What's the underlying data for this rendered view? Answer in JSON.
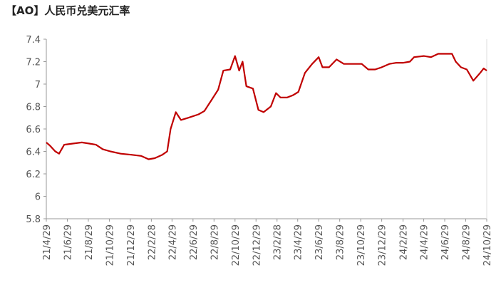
{
  "chart_data": {
    "type": "line",
    "title": "【AO】人民币兑美元汇率",
    "x": [
      "21/4/29",
      "21/5/10",
      "21/5/25",
      "21/6/5",
      "21/6/20",
      "21/7/15",
      "21/8/10",
      "21/9/1",
      "21/9/20",
      "21/10/10",
      "21/11/1",
      "21/12/1",
      "22/1/1",
      "22/1/29",
      "22/2/20",
      "22/3/10",
      "22/4/1",
      "22/4/15",
      "22/4/25",
      "22/5/10",
      "22/5/25",
      "22/6/15",
      "22/7/15",
      "22/8/1",
      "22/8/20",
      "22/9/10",
      "22/9/25",
      "22/10/15",
      "22/10/29",
      "22/11/10",
      "22/11/20",
      "22/12/1",
      "22/12/20",
      "23/1/5",
      "23/1/20",
      "23/2/10",
      "23/2/25",
      "23/3/10",
      "23/3/29",
      "23/4/15",
      "23/5/1",
      "23/5/20",
      "23/6/10",
      "23/6/29",
      "23/7/10",
      "23/7/29",
      "23/8/20",
      "23/9/10",
      "23/10/1",
      "23/11/1",
      "23/11/20",
      "23/12/10",
      "23/12/29",
      "24/1/20",
      "24/2/10",
      "24/3/1",
      "24/3/20",
      "24/4/1",
      "24/4/29",
      "24/5/20",
      "24/6/10",
      "24/6/29",
      "24/7/20",
      "24/7/31",
      "24/8/15",
      "24/9/1",
      "24/9/20",
      "24/10/10",
      "24/10/20",
      "24/10/29"
    ],
    "series": [
      {
        "color": "#c00000",
        "values": [
          6.48,
          6.45,
          6.4,
          6.38,
          6.46,
          6.47,
          6.48,
          6.47,
          6.46,
          6.42,
          6.4,
          6.38,
          6.37,
          6.36,
          6.33,
          6.34,
          6.37,
          6.4,
          6.6,
          6.75,
          6.68,
          6.7,
          6.73,
          6.76,
          6.85,
          6.95,
          7.12,
          7.13,
          7.25,
          7.12,
          7.2,
          6.98,
          6.96,
          6.77,
          6.75,
          6.8,
          6.92,
          6.88,
          6.88,
          6.9,
          6.93,
          7.1,
          7.18,
          7.24,
          7.15,
          7.15,
          7.22,
          7.18,
          7.18,
          7.18,
          7.13,
          7.13,
          7.15,
          7.18,
          7.19,
          7.19,
          7.2,
          7.24,
          7.25,
          7.24,
          7.27,
          7.27,
          7.27,
          7.2,
          7.15,
          7.13,
          7.03,
          7.1,
          7.14,
          7.12
        ]
      }
    ],
    "xlim": [
      "21/4/29",
      "24/10/29"
    ],
    "xticks": [
      "21/4/29",
      "21/6/29",
      "21/8/29",
      "21/10/29",
      "21/12/29",
      "22/2/28",
      "22/4/29",
      "22/6/29",
      "22/8/29",
      "22/10/29",
      "22/12/29",
      "23/2/28",
      "23/4/29",
      "23/6/29",
      "23/8/29",
      "23/10/29",
      "23/12/29",
      "24/2/29",
      "24/4/29",
      "24/6/29",
      "24/8/29",
      "24/10/29"
    ],
    "ylim": [
      5.8,
      7.4
    ],
    "yticks": [
      5.8,
      6,
      6.2,
      6.4,
      6.6,
      6.8,
      7,
      7.2,
      7.4
    ],
    "grid": false
  }
}
